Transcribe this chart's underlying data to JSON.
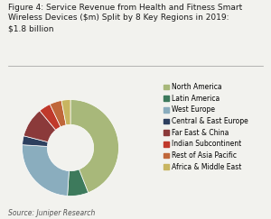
{
  "title": "Figure 4: Service Revenue from Health and Fitness Smart\nWireless Devices ($m) Split by 8 Key Regions in 2019:\n$1.8 billion",
  "source": "Source: Juniper Research",
  "labels": [
    "North America",
    "Latin America",
    "West Europe",
    "Central & East Europe",
    "Far East & China",
    "Indian Subcontinent",
    "Rest of Asia Pacific",
    "Africa & Middle East"
  ],
  "values": [
    44,
    7,
    25,
    3,
    10,
    4,
    4,
    3
  ],
  "colors": [
    "#a8b87a",
    "#3d7a5c",
    "#8aadbe",
    "#2d3f5e",
    "#8b3a3a",
    "#c0392b",
    "#c0673a",
    "#c8b560"
  ],
  "bg_color": "#f2f2ee",
  "title_fontsize": 6.5,
  "legend_fontsize": 5.5,
  "source_fontsize": 5.5
}
